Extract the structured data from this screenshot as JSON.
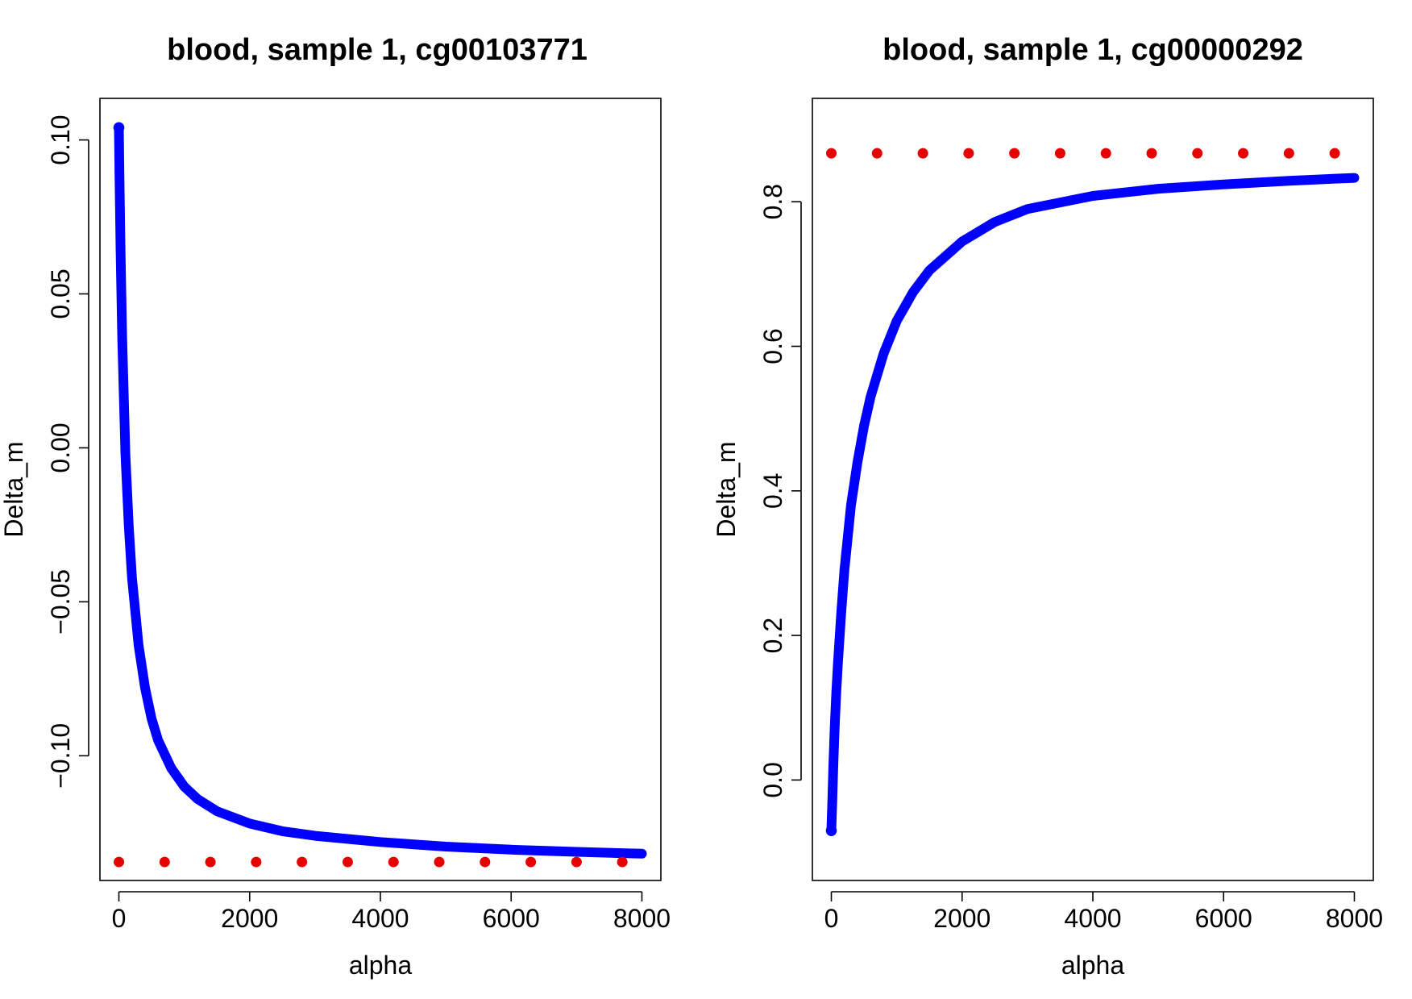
{
  "chart_data": [
    {
      "type": "scatter",
      "title": "blood, sample 1, cg00103771",
      "xlabel": "alpha",
      "ylabel": "Delta_m",
      "xlim": [
        -290,
        8290
      ],
      "ylim": [
        -0.1405,
        0.1135
      ],
      "x_ticks": [
        0,
        2000,
        4000,
        6000,
        8000
      ],
      "x_tick_labels": [
        "0",
        "2000",
        "4000",
        "6000",
        "8000"
      ],
      "y_ticks": [
        -0.1,
        -0.05,
        0.0,
        0.05,
        0.1
      ],
      "y_tick_labels": [
        "−0.10",
        "−0.05",
        "0.00",
        "0.05",
        "0.10"
      ],
      "grid": false,
      "series": [
        {
          "kind": "curve",
          "color": "#0000ff",
          "points": [
            [
              0,
              0.104
            ],
            [
              10,
              0.087
            ],
            [
              25,
              0.064
            ],
            [
              50,
              0.036
            ],
            [
              100,
              -0.002
            ],
            [
              150,
              -0.025
            ],
            [
              200,
              -0.042
            ],
            [
              300,
              -0.064
            ],
            [
              400,
              -0.078
            ],
            [
              500,
              -0.088
            ],
            [
              600,
              -0.095
            ],
            [
              800,
              -0.104
            ],
            [
              1000,
              -0.11
            ],
            [
              1200,
              -0.114
            ],
            [
              1500,
              -0.118
            ],
            [
              2000,
              -0.122
            ],
            [
              2500,
              -0.1245
            ],
            [
              3000,
              -0.126
            ],
            [
              4000,
              -0.128
            ],
            [
              5000,
              -0.1295
            ],
            [
              6000,
              -0.1305
            ],
            [
              7000,
              -0.1312
            ],
            [
              8000,
              -0.1318
            ]
          ]
        },
        {
          "kind": "points",
          "color": "#e60000",
          "points": [
            [
              0,
              -0.1345
            ],
            [
              700,
              -0.1345
            ],
            [
              1400,
              -0.1345
            ],
            [
              2100,
              -0.1345
            ],
            [
              2800,
              -0.1345
            ],
            [
              3500,
              -0.1345
            ],
            [
              4200,
              -0.1345
            ],
            [
              4900,
              -0.1345
            ],
            [
              5600,
              -0.1345
            ],
            [
              6300,
              -0.1345
            ],
            [
              7000,
              -0.1345
            ],
            [
              7700,
              -0.1345
            ]
          ]
        }
      ]
    },
    {
      "type": "scatter",
      "title": "blood, sample 1, cg00000292",
      "xlabel": "alpha",
      "ylabel": "Delta_m",
      "xlim": [
        -290,
        8290
      ],
      "ylim": [
        -0.139,
        0.943
      ],
      "x_ticks": [
        0,
        2000,
        4000,
        6000,
        8000
      ],
      "x_tick_labels": [
        "0",
        "2000",
        "4000",
        "6000",
        "8000"
      ],
      "y_ticks": [
        0.0,
        0.2,
        0.4,
        0.6,
        0.8
      ],
      "y_tick_labels": [
        "0.0",
        "0.2",
        "0.4",
        "0.6",
        "0.8"
      ],
      "grid": false,
      "series": [
        {
          "kind": "curve",
          "color": "#0000ff",
          "points": [
            [
              0,
              -0.07
            ],
            [
              15,
              -0.03
            ],
            [
              30,
              0.02
            ],
            [
              50,
              0.07
            ],
            [
              75,
              0.12
            ],
            [
              100,
              0.16
            ],
            [
              150,
              0.23
            ],
            [
              200,
              0.29
            ],
            [
              300,
              0.38
            ],
            [
              400,
              0.44
            ],
            [
              500,
              0.49
            ],
            [
              600,
              0.53
            ],
            [
              800,
              0.59
            ],
            [
              1000,
              0.635
            ],
            [
              1250,
              0.675
            ],
            [
              1500,
              0.705
            ],
            [
              2000,
              0.745
            ],
            [
              2500,
              0.772
            ],
            [
              3000,
              0.79
            ],
            [
              4000,
              0.808
            ],
            [
              5000,
              0.818
            ],
            [
              6000,
              0.824
            ],
            [
              7000,
              0.829
            ],
            [
              8000,
              0.833
            ]
          ]
        },
        {
          "kind": "points",
          "color": "#e60000",
          "points": [
            [
              0,
              0.867
            ],
            [
              700,
              0.867
            ],
            [
              1400,
              0.867
            ],
            [
              2100,
              0.867
            ],
            [
              2800,
              0.867
            ],
            [
              3500,
              0.867
            ],
            [
              4200,
              0.867
            ],
            [
              4900,
              0.867
            ],
            [
              5600,
              0.867
            ],
            [
              6300,
              0.867
            ],
            [
              7000,
              0.867
            ],
            [
              7700,
              0.867
            ]
          ]
        }
      ]
    }
  ]
}
